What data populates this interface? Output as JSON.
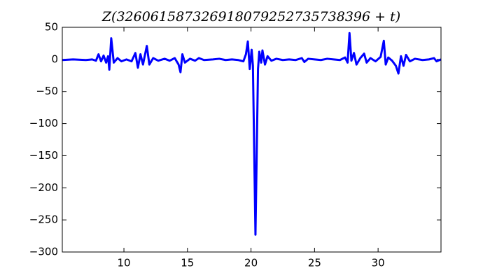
{
  "chart_data": {
    "type": "line",
    "title": "Z(326061587326918079252735738396 + t)",
    "x": [
      5.15,
      6,
      7,
      7.5,
      7.8,
      8.0,
      8.2,
      8.4,
      8.6,
      8.75,
      8.85,
      9.0,
      9.2,
      9.5,
      9.8,
      10.2,
      10.6,
      10.9,
      11.1,
      11.3,
      11.5,
      11.8,
      12.0,
      12.3,
      12.7,
      13.2,
      13.6,
      14.0,
      14.3,
      14.45,
      14.6,
      14.8,
      15.2,
      15.6,
      15.9,
      16.3,
      17,
      17.5,
      18,
      18.5,
      19,
      19.4,
      19.6,
      19.75,
      19.9,
      20.05,
      20.15,
      20.35,
      20.55,
      20.65,
      20.8,
      20.9,
      21.1,
      21.3,
      21.6,
      22,
      22.5,
      23,
      23.5,
      24,
      24.2,
      24.5,
      25,
      25.5,
      26,
      26.5,
      27,
      27.4,
      27.6,
      27.75,
      27.9,
      28.1,
      28.3,
      28.6,
      28.9,
      29.1,
      29.4,
      29.8,
      30.2,
      30.45,
      30.6,
      30.8,
      31.1,
      31.4,
      31.6,
      31.8,
      32.0,
      32.2,
      32.5,
      32.9,
      33.5,
      34,
      34.4,
      34.6,
      34.95
    ],
    "series": [
      {
        "color": "#0000ff",
        "values": [
          -1,
          0,
          -1,
          0,
          -2,
          8,
          -3,
          6,
          -5,
          5,
          -16,
          33,
          -5,
          2,
          -3,
          0,
          -3,
          10,
          -13,
          8,
          -8,
          21,
          -8,
          2,
          -2,
          1,
          -2,
          2,
          -8,
          -20,
          8,
          -5,
          1,
          -2,
          2,
          -1,
          0,
          1,
          -1,
          0,
          -1,
          -3,
          8,
          28,
          -15,
          15,
          -10,
          -273,
          -15,
          12,
          -5,
          14,
          -8,
          5,
          -2,
          1,
          -1,
          0,
          -1,
          2,
          -4,
          1,
          0,
          -1,
          1,
          0,
          -1,
          3,
          -5,
          41,
          -2,
          10,
          -8,
          2,
          9,
          -5,
          2,
          -3,
          4,
          29,
          -8,
          3,
          -2,
          -10,
          -22,
          5,
          -10,
          7,
          -3,
          1,
          -1,
          0,
          2,
          -3,
          0
        ]
      }
    ],
    "xlim": [
      5.15,
      34.95
    ],
    "xticks": [
      10,
      15,
      20,
      25,
      30
    ],
    "ylim": [
      -300,
      50
    ],
    "yticks": [
      {
        "value": -300,
        "label": "−300"
      },
      {
        "value": -250,
        "label": "−250"
      },
      {
        "value": -200,
        "label": "−200"
      },
      {
        "value": -150,
        "label": "−150"
      },
      {
        "value": -100,
        "label": "−100"
      },
      {
        "value": -50,
        "label": "−50"
      },
      0,
      50
    ]
  }
}
